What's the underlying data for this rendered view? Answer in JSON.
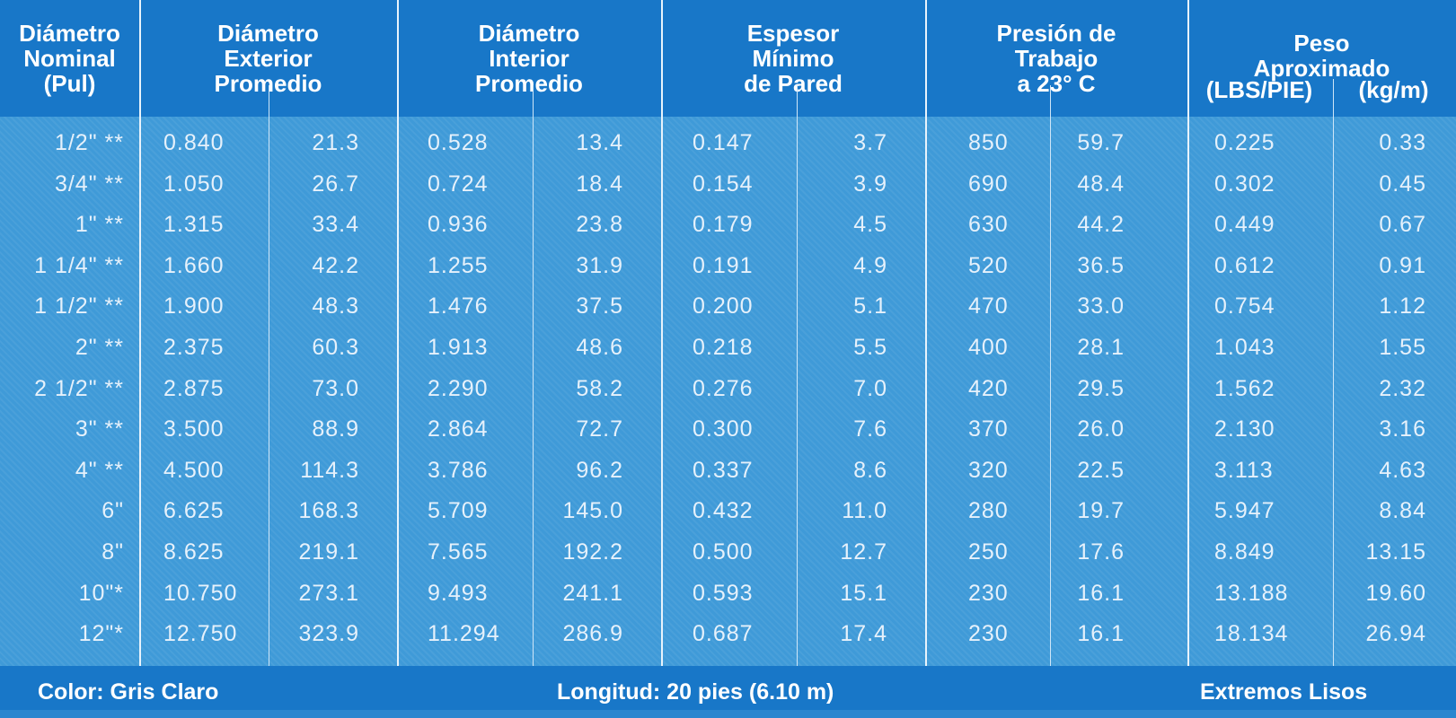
{
  "headers": {
    "nominal": "Diámetro\nNominal\n(Pul)",
    "exterior": "Diámetro\nExterior\nPromedio",
    "interior": "Diámetro\nInterior\nPromedio",
    "espesor": "Espesor\nMínimo\nde Pared",
    "presion": "Presión de\nTrabajo\na 23° C",
    "peso": "Peso\nAproximado",
    "peso_lbs": "(LBS/PIE)",
    "peso_kg": "(kg/m)"
  },
  "rows": [
    [
      "1/2\" **",
      "0.840",
      "21.3",
      "0.528",
      "13.4",
      "0.147",
      "3.7",
      "850",
      "59.7",
      "0.225",
      "0.33"
    ],
    [
      "3/4\" **",
      "1.050",
      "26.7",
      "0.724",
      "18.4",
      "0.154",
      "3.9",
      "690",
      "48.4",
      "0.302",
      "0.45"
    ],
    [
      "1\" **",
      "1.315",
      "33.4",
      "0.936",
      "23.8",
      "0.179",
      "4.5",
      "630",
      "44.2",
      "0.449",
      "0.67"
    ],
    [
      "1 1/4\" **",
      "1.660",
      "42.2",
      "1.255",
      "31.9",
      "0.191",
      "4.9",
      "520",
      "36.5",
      "0.612",
      "0.91"
    ],
    [
      "1 1/2\" **",
      "1.900",
      "48.3",
      "1.476",
      "37.5",
      "0.200",
      "5.1",
      "470",
      "33.0",
      "0.754",
      "1.12"
    ],
    [
      "2\" **",
      "2.375",
      "60.3",
      "1.913",
      "48.6",
      "0.218",
      "5.5",
      "400",
      "28.1",
      "1.043",
      "1.55"
    ],
    [
      "2 1/2\" **",
      "2.875",
      "73.0",
      "2.290",
      "58.2",
      "0.276",
      "7.0",
      "420",
      "29.5",
      "1.562",
      "2.32"
    ],
    [
      "3\" **",
      "3.500",
      "88.9",
      "2.864",
      "72.7",
      "0.300",
      "7.6",
      "370",
      "26.0",
      "2.130",
      "3.16"
    ],
    [
      "4\" **",
      "4.500",
      "114.3",
      "3.786",
      "96.2",
      "0.337",
      "8.6",
      "320",
      "22.5",
      "3.113",
      "4.63"
    ],
    [
      "6\"",
      "6.625",
      "168.3",
      "5.709",
      "145.0",
      "0.432",
      "11.0",
      "280",
      "19.7",
      "5.947",
      "8.84"
    ],
    [
      "8\"",
      "8.625",
      "219.1",
      "7.565",
      "192.2",
      "0.500",
      "12.7",
      "250",
      "17.6",
      "8.849",
      "13.15"
    ],
    [
      "10\"*",
      "10.750",
      "273.1",
      "9.493",
      "241.1",
      "0.593",
      "15.1",
      "230",
      "16.1",
      "13.188",
      "19.60"
    ],
    [
      "12\"*",
      "12.750",
      "323.9",
      "11.294",
      "286.9",
      "0.687",
      "17.4",
      "230",
      "16.1",
      "18.134",
      "26.94"
    ]
  ],
  "footer": {
    "color": "Color: Gris Claro",
    "longitud": "Longitud: 20 pies (6.10 m)",
    "extremos": "Extremos Lisos"
  }
}
